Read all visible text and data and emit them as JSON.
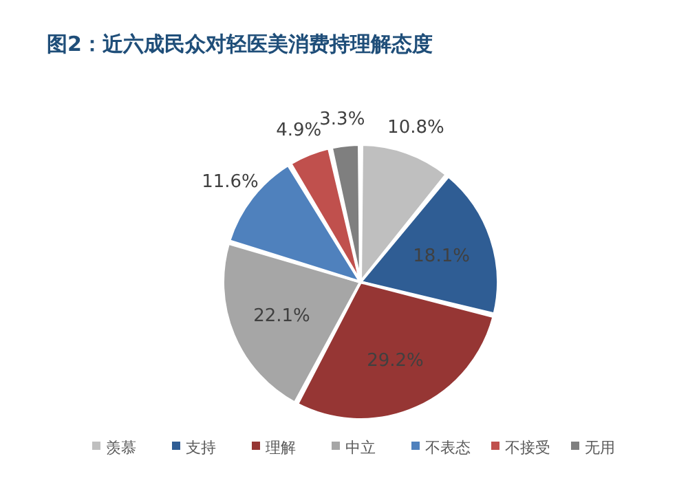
{
  "chart_data": {
    "type": "pie",
    "title": "图2：近六成民众对轻医美消费持理解态度",
    "categories": [
      "羡慕",
      "支持",
      "理解",
      "中立",
      "不表态",
      "不接受",
      "无用"
    ],
    "values": [
      10.8,
      18.1,
      29.2,
      22.1,
      11.6,
      4.9,
      3.3
    ],
    "colors": [
      "#bfbfbf",
      "#2f5d94",
      "#963634",
      "#a6a6a6",
      "#4f81bd",
      "#c0504d",
      "#7f7f7f"
    ],
    "value_labels": [
      "10.8%",
      "18.1%",
      "29.2%",
      "22.1%",
      "11.6%",
      "4.9%",
      "3.3%"
    ],
    "legend": "bottom"
  }
}
